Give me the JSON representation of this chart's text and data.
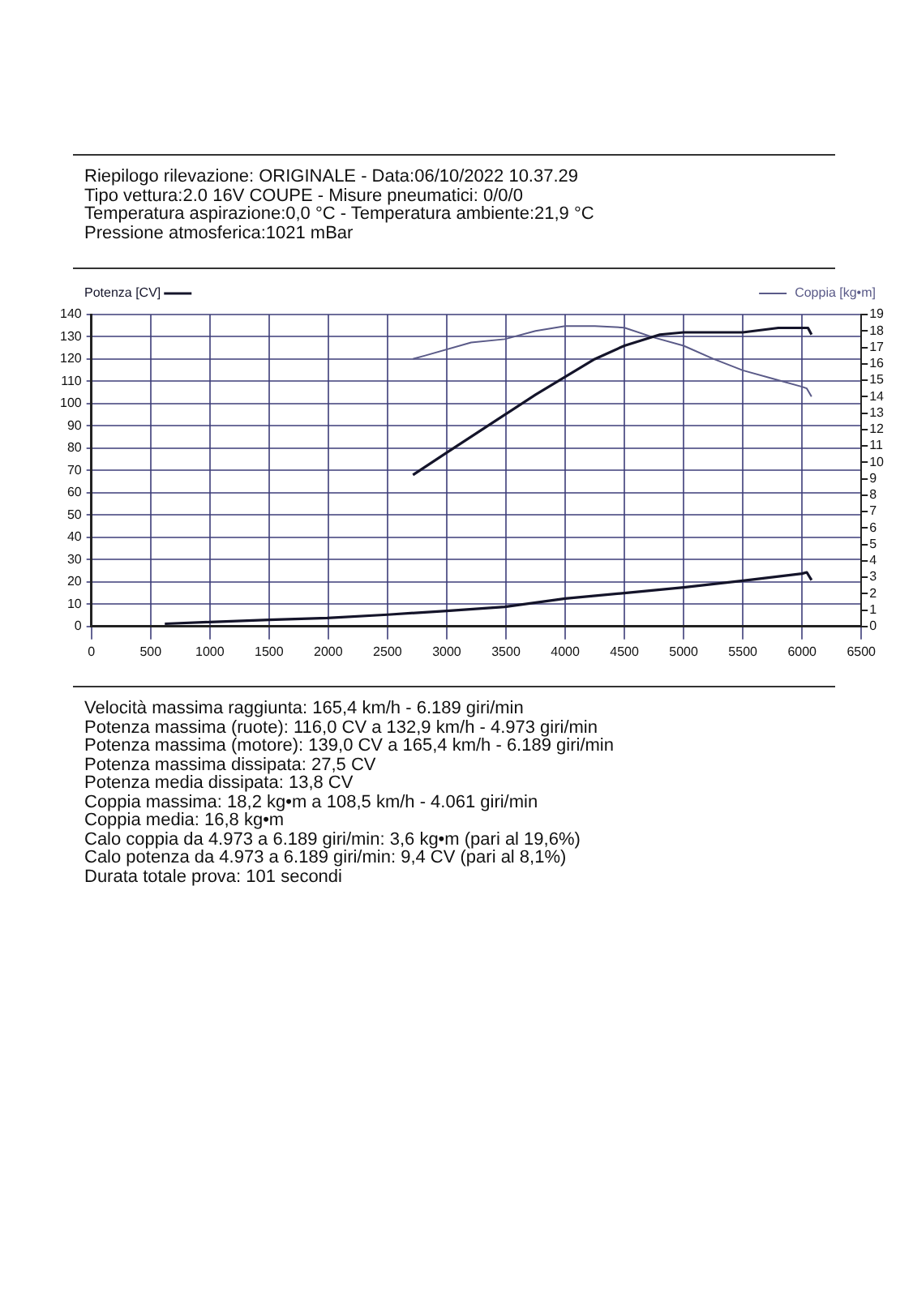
{
  "chart_data": {
    "type": "line",
    "subtitle": "Riepilogo rilevazione: ORIGINALE - Data:06/10/2022 10.37.29\nTipo vettura:2.0 16V COUPE - Misure pneumatici: 0/0/0\nTemperatura aspirazione:0,0 °C  - Temperatura ambiente:21,9 °C\nPressione atmosferica:1021 mBar",
    "series": [
      {
        "name": "Potenza [CV]",
        "color": "#14142a",
        "axis": "y",
        "x": [
          2715,
          3000,
          3490,
          3750,
          4000,
          4250,
          4500,
          4800,
          5000,
          5500,
          5800,
          6000,
          6050,
          6080
        ],
        "values": [
          68,
          78,
          95,
          104,
          112,
          120,
          126,
          131,
          132,
          132,
          134,
          134,
          134,
          131
        ]
      },
      {
        "name": "Coppia [kg•m]",
        "color": "#5a5a88",
        "axis": "y2",
        "x": [
          2715,
          2818,
          3206,
          3490,
          3750,
          4000,
          4250,
          4500,
          4750,
          5000,
          5250,
          5500,
          5750,
          6000,
          6040,
          6080
        ],
        "values": [
          16.3,
          16.5,
          17.3,
          17.5,
          18.0,
          18.3,
          18.3,
          18.2,
          17.6,
          17.1,
          16.3,
          15.6,
          15.1,
          14.6,
          14.5,
          14.0
        ]
      },
      {
        "color": "#14142a",
        "axis": "y",
        "x": [
          620,
          1000,
          1500,
          1990,
          2500,
          3000,
          3490,
          4000,
          4500,
          5000,
          5500,
          6000,
          6040,
          6080
        ],
        "values": [
          1.2,
          2.0,
          3.0,
          3.8,
          5.3,
          7.0,
          8.8,
          12.5,
          15,
          17.5,
          20.5,
          23.7,
          24.3,
          20.8
        ]
      }
    ],
    "xlim": [
      0,
      6500
    ],
    "xticks": [
      0,
      500,
      1000,
      1500,
      2000,
      2500,
      3000,
      3500,
      4000,
      4500,
      5000,
      5500,
      6000,
      6500
    ],
    "ylim": [
      0,
      140
    ],
    "yticks": [
      0,
      10,
      20,
      30,
      40,
      50,
      60,
      70,
      80,
      90,
      100,
      110,
      120,
      130,
      140
    ],
    "y2lim": [
      0,
      19
    ],
    "y2ticks": [
      0,
      1,
      2,
      3,
      4,
      5,
      6,
      7,
      8,
      9,
      10,
      11,
      12,
      13,
      14,
      15,
      16,
      17,
      18,
      19
    ],
    "grid": true,
    "legend": "top",
    "marker": "none",
    "line_style": "solid",
    "annotations": [
      "Velocità massima raggiunta: 165,4 km/h - 6.189 giri/min",
      "Potenza massima (ruote): 116,0 CV a 132,9 km/h - 4.973 giri/min",
      "Potenza massima (motore): 139,0 CV a 165,4 km/h - 6.189 giri/min",
      "Potenza massima dissipata: 27,5 CV",
      "Potenza media dissipata: 13,8 CV",
      "Coppia massima: 18,2 kg•m a 108,5 km/h - 4.061 giri/min",
      "Coppia media: 16,8 kg•m",
      "Calo coppia da 4.973 a 6.189 giri/min: 3,6 kg•m (pari al 19,6%)",
      "Calo potenza da 4.973 a 6.189 giri/min: 9,4 CV (pari al 8,1%)",
      "Durata totale prova: 101 secondi"
    ]
  }
}
